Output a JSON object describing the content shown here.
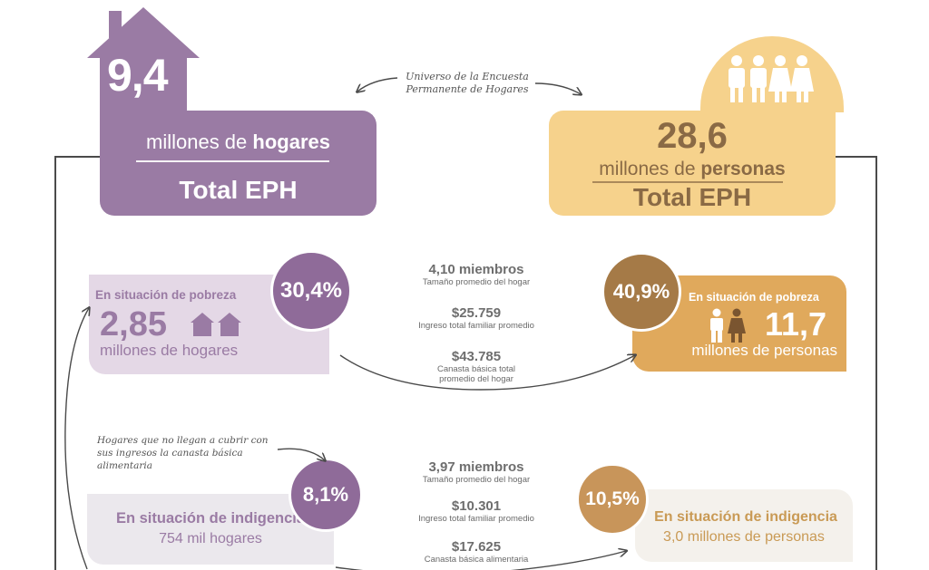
{
  "top": {
    "hogares": {
      "number": "9,4",
      "line1_pre": "millones de ",
      "line1_bold": "hogares",
      "line2": "Total EPH"
    },
    "personas": {
      "number": "28,6",
      "line1_pre": "millones de ",
      "line1_bold": "personas",
      "line2": "Total EPH"
    },
    "universe": {
      "line1": "Universo de la Encuesta",
      "line2": "Permanente de Hogares"
    }
  },
  "pobreza": {
    "hogares": {
      "title": "En situación de pobreza",
      "percent": "30,4%",
      "number": "2,85",
      "unit": "millones de hogares"
    },
    "personas": {
      "title": "En situación de pobreza",
      "percent": "40,9%",
      "number": "11,7",
      "unit": "millones de personas"
    },
    "stats": [
      {
        "value": "4,10 miembros",
        "label": "Tamaño promedio del hogar"
      },
      {
        "value": "$25.759",
        "label": "Ingreso total familiar promedio"
      },
      {
        "value": "$43.785",
        "label": "Canasta básica total promedio del hogar"
      }
    ]
  },
  "indigencia": {
    "note": "Hogares que no llegan a cubrir con sus ingresos la canasta básica alimentaria",
    "hogares": {
      "title": "En situación de indigencia",
      "percent": "8,1%",
      "unit": "754 mil hogares"
    },
    "personas": {
      "title": "En situación de indigencia",
      "percent": "10,5%",
      "unit": "3,0 millones de personas"
    },
    "stats": [
      {
        "value": "3,97 miembros",
        "label": "Tamaño promedio del hogar"
      },
      {
        "value": "$10.301",
        "label": "Ingreso total familiar promedio"
      },
      {
        "value": "$17.625",
        "label": "Canasta básica alimentaria"
      }
    ]
  },
  "colors": {
    "purple": "#9a7ba4",
    "purple_dark": "#8f6b99",
    "gold": "#f6d28c",
    "gold_dark": "#a57a47",
    "orange": "#e0a95c"
  }
}
